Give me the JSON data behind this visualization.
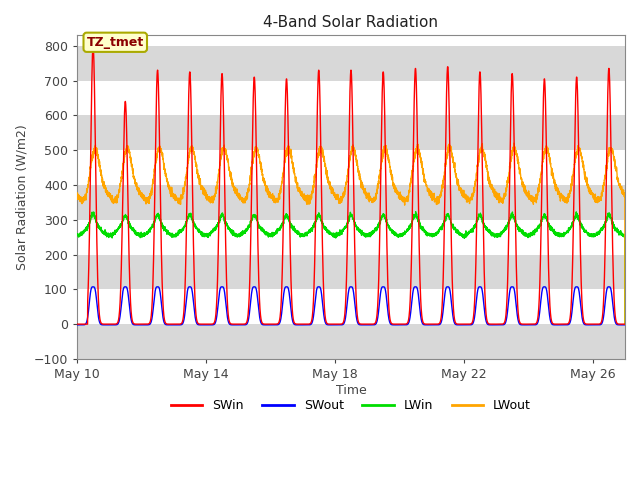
{
  "title": "4-Band Solar Radiation",
  "xlabel": "Time",
  "ylabel": "Solar Radiation (W/m2)",
  "ylim": [
    -100,
    830
  ],
  "yticks": [
    -100,
    0,
    100,
    200,
    300,
    400,
    500,
    600,
    700,
    800
  ],
  "xlim_start": 0,
  "xlim_end": 17,
  "xtick_positions": [
    0,
    4,
    8,
    12,
    16
  ],
  "xtick_labels": [
    "May 10",
    "May 14",
    "May 18",
    "May 22",
    "May 26"
  ],
  "colors": {
    "SWin": "#ff0000",
    "SWout": "#0000ff",
    "LWin": "#00dd00",
    "LWout": "#ffa500"
  },
  "annotation_text": "TZ_tmet",
  "bg_gray": "#d8d8d8",
  "bg_white": "#ffffff"
}
